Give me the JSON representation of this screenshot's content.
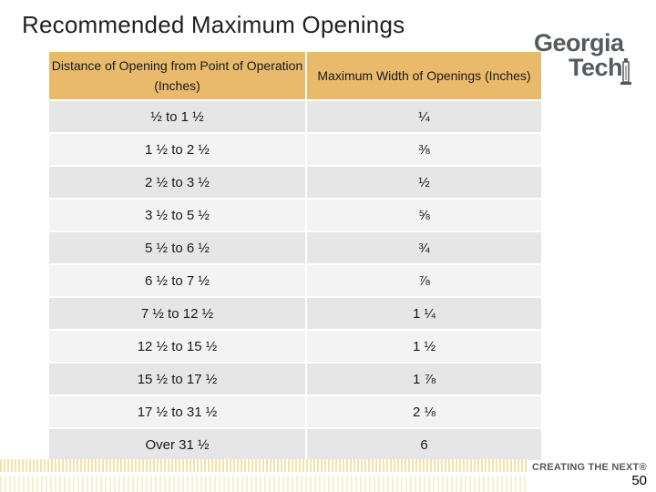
{
  "slide": {
    "title": "Recommended Maximum Openings",
    "page_number": "50"
  },
  "logo": {
    "line1": "Georgia",
    "line2": "Tech"
  },
  "footer": {
    "tagline": "CREATING THE NEXT®"
  },
  "table": {
    "headers": [
      "Distance of Opening from Point of Operation (Inches)",
      "Maximum Width of Openings (Inches)"
    ],
    "rows": [
      [
        "½ to 1 ½",
        "¼"
      ],
      [
        "1 ½ to 2 ½",
        "⅜"
      ],
      [
        "2 ½ to 3 ½",
        "½"
      ],
      [
        "3 ½ to 5 ½",
        "⅝"
      ],
      [
        "5 ½ to 6 ½",
        "¾"
      ],
      [
        "6 ½ to 7 ½",
        "⅞"
      ],
      [
        "7 ½ to 12 ½",
        "1 ¼"
      ],
      [
        "12 ½ to 15 ½",
        "1 ½"
      ],
      [
        "15 ½ to 17 ½",
        "1 ⅞"
      ],
      [
        "17 ½ to 31 ½",
        "2 ⅛"
      ],
      [
        "Over 31 ½",
        "6"
      ]
    ]
  }
}
